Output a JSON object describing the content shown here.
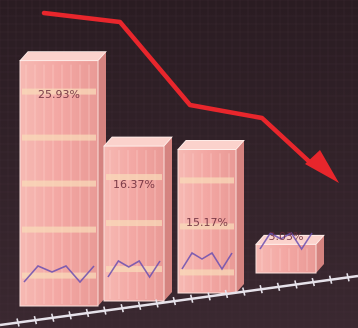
{
  "chart_data": {
    "type": "bar",
    "style": "3d glass columns with falling trend arrow",
    "categories": [
      "",
      "",
      "",
      ""
    ],
    "values": [
      25.93,
      16.37,
      15.17,
      3.03
    ],
    "value_labels": [
      "25.93%",
      "16.37%",
      "15.17%",
      "3.03%"
    ],
    "ylim": [
      0,
      28
    ],
    "title": "",
    "xlabel": "",
    "ylabel": "",
    "grid": true,
    "legend": "none",
    "trend": "down",
    "colors": {
      "background": "#2a1c22",
      "grid": "#4a3540",
      "bar_front": "#f3a7a3",
      "bar_top": "#fbd2cc",
      "bar_side": "#e38c88",
      "bar_stripe": "#f8dab8",
      "inner_line": "#6b4fb0",
      "arrow": "#e8262c",
      "baseline": "#e6e2ea"
    }
  }
}
